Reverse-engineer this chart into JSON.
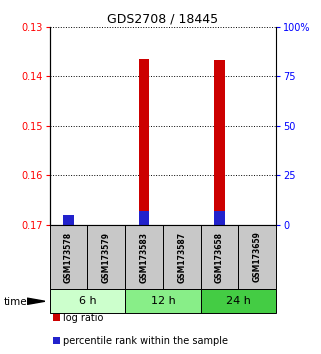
{
  "title": "GDS2708 / 18445",
  "samples": [
    "GSM173578",
    "GSM173579",
    "GSM173583",
    "GSM173587",
    "GSM173658",
    "GSM173659"
  ],
  "groups": [
    {
      "label": "6 h",
      "indices": [
        0,
        1
      ],
      "color": "#ccffcc"
    },
    {
      "label": "12 h",
      "indices": [
        2,
        3
      ],
      "color": "#88ee88"
    },
    {
      "label": "24 h",
      "indices": [
        4,
        5
      ],
      "color": "#44cc44"
    }
  ],
  "log_ratio": [
    -0.1685,
    null,
    -0.1365,
    null,
    -0.1368,
    null
  ],
  "log_ratio_base": -0.17,
  "percentile_rank_pct": [
    5.0,
    null,
    7.0,
    null,
    7.0,
    null
  ],
  "ylim_left": [
    -0.17,
    -0.13
  ],
  "ylim_right": [
    0,
    100
  ],
  "yticks_left": [
    -0.17,
    -0.16,
    -0.15,
    -0.14,
    -0.13
  ],
  "yticks_right": [
    0,
    25,
    50,
    75,
    100
  ],
  "ytick_labels_right": [
    "0",
    "25",
    "50",
    "75",
    "100%"
  ],
  "red_color": "#cc0000",
  "blue_color": "#2222cc",
  "bg_plot": "#ffffff",
  "bg_sample_box": "#c8c8c8",
  "group_colors": [
    "#ccffcc",
    "#88ee88",
    "#44cc44"
  ],
  "legend_items": [
    "log ratio",
    "percentile rank within the sample"
  ]
}
